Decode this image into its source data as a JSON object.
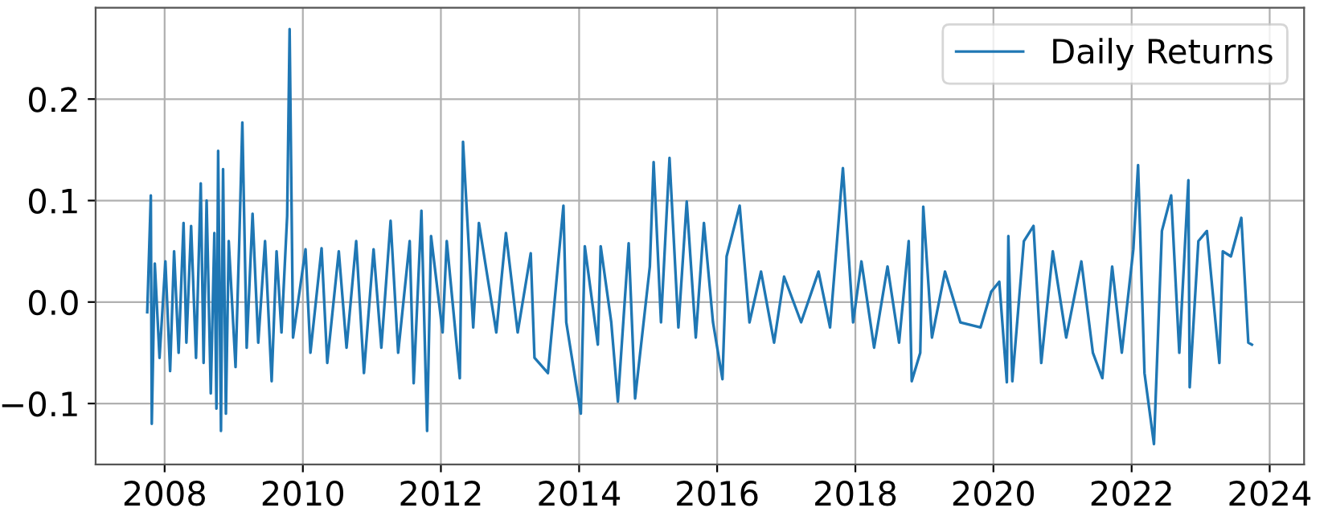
{
  "chart_data": {
    "type": "line",
    "xlim": [
      "2007-01-01",
      "2024-07-01"
    ],
    "xticks": [
      {
        "value": "2008-01-01",
        "label": "2008"
      },
      {
        "value": "2010-01-01",
        "label": "2010"
      },
      {
        "value": "2012-01-01",
        "label": "2012"
      },
      {
        "value": "2014-01-01",
        "label": "2014"
      },
      {
        "value": "2016-01-01",
        "label": "2016"
      },
      {
        "value": "2018-01-01",
        "label": "2018"
      },
      {
        "value": "2020-01-01",
        "label": "2020"
      },
      {
        "value": "2022-01-01",
        "label": "2022"
      },
      {
        "value": "2024-01-01",
        "label": "2024"
      }
    ],
    "ylim": [
      -0.16,
      0.29
    ],
    "yticks": [
      {
        "value": -0.1,
        "label": "−0.1"
      },
      {
        "value": 0.0,
        "label": "0.0"
      },
      {
        "value": 0.1,
        "label": "0.1"
      },
      {
        "value": 0.2,
        "label": "0.2"
      }
    ],
    "grid": true,
    "legend": "top right",
    "series": [
      {
        "name": "Daily Returns",
        "color": "#1f77b4",
        "x": [
          "2007-10-01",
          "2007-10-20",
          "2007-10-25",
          "2007-11-10",
          "2007-12-05",
          "2008-01-05",
          "2008-01-30",
          "2008-02-20",
          "2008-03-15",
          "2008-04-10",
          "2008-04-25",
          "2008-05-20",
          "2008-06-15",
          "2008-07-10",
          "2008-07-25",
          "2008-08-10",
          "2008-09-01",
          "2008-09-20",
          "2008-10-01",
          "2008-10-10",
          "2008-10-25",
          "2008-11-05",
          "2008-11-20",
          "2008-12-05",
          "2009-01-10",
          "2009-01-30",
          "2009-02-15",
          "2009-03-10",
          "2009-04-10",
          "2009-05-10",
          "2009-06-15",
          "2009-07-20",
          "2009-08-15",
          "2009-09-10",
          "2009-10-10",
          "2009-10-23",
          "2009-11-10",
          "2010-01-15",
          "2010-02-10",
          "2010-04-10",
          "2010-05-10",
          "2010-07-10",
          "2010-08-20",
          "2010-10-10",
          "2010-11-20",
          "2011-01-10",
          "2011-02-20",
          "2011-04-10",
          "2011-05-20",
          "2011-07-20",
          "2011-08-10",
          "2011-09-20",
          "2011-10-20",
          "2011-11-10",
          "2012-01-10",
          "2012-02-01",
          "2012-04-10",
          "2012-04-27",
          "2012-06-20",
          "2012-07-20",
          "2012-10-20",
          "2012-12-10",
          "2013-02-10",
          "2013-04-20",
          "2013-05-10",
          "2013-07-20",
          "2013-10-10",
          "2013-10-25",
          "2014-01-10",
          "2014-01-31",
          "2014-04-10",
          "2014-04-25",
          "2014-06-20",
          "2014-07-25",
          "2014-09-20",
          "2014-10-24",
          "2015-01-10",
          "2015-01-30",
          "2015-03-10",
          "2015-04-24",
          "2015-06-10",
          "2015-07-24",
          "2015-09-10",
          "2015-10-23",
          "2015-12-10",
          "2016-01-29",
          "2016-02-20",
          "2016-04-29",
          "2016-06-20",
          "2016-08-20",
          "2016-10-28",
          "2016-12-20",
          "2017-03-20",
          "2017-06-20",
          "2017-08-20",
          "2017-10-27",
          "2017-12-20",
          "2018-02-02",
          "2018-04-10",
          "2018-06-20",
          "2018-08-20",
          "2018-10-10",
          "2018-10-26",
          "2018-12-10",
          "2018-12-26",
          "2019-02-10",
          "2019-04-20",
          "2019-07-10",
          "2019-10-25",
          "2019-12-20",
          "2020-02-01",
          "2020-03-12",
          "2020-03-20",
          "2020-04-10",
          "2020-06-10",
          "2020-07-31",
          "2020-09-10",
          "2020-11-10",
          "2021-01-20",
          "2021-04-10",
          "2021-06-10",
          "2021-07-30",
          "2021-09-20",
          "2021-11-10",
          "2022-01-10",
          "2022-02-04",
          "2022-03-10",
          "2022-04-29",
          "2022-06-10",
          "2022-07-29",
          "2022-09-10",
          "2022-10-28",
          "2022-11-04",
          "2022-12-20",
          "2023-02-03",
          "2023-04-10",
          "2023-04-28",
          "2023-06-10",
          "2023-08-04",
          "2023-09-10",
          "2023-09-29"
        ],
        "values": [
          -0.01,
          0.105,
          -0.12,
          0.038,
          -0.055,
          0.04,
          -0.068,
          0.05,
          -0.05,
          0.078,
          -0.04,
          0.075,
          -0.055,
          0.117,
          -0.06,
          0.1,
          -0.09,
          0.068,
          -0.105,
          0.149,
          -0.127,
          0.131,
          -0.11,
          0.06,
          -0.064,
          0.062,
          0.177,
          -0.045,
          0.087,
          -0.04,
          0.06,
          -0.078,
          0.05,
          -0.03,
          0.085,
          0.269,
          -0.035,
          0.052,
          -0.05,
          0.053,
          -0.06,
          0.05,
          -0.045,
          0.06,
          -0.07,
          0.052,
          -0.045,
          0.08,
          -0.05,
          0.06,
          -0.08,
          0.09,
          -0.127,
          0.065,
          -0.03,
          0.06,
          -0.075,
          0.158,
          -0.025,
          0.078,
          -0.03,
          0.068,
          -0.03,
          0.048,
          -0.055,
          -0.07,
          0.095,
          -0.02,
          -0.11,
          0.055,
          -0.042,
          0.055,
          -0.02,
          -0.098,
          0.058,
          -0.095,
          0.035,
          0.138,
          -0.02,
          0.142,
          -0.025,
          0.099,
          -0.035,
          0.078,
          -0.02,
          -0.076,
          0.045,
          0.095,
          -0.02,
          0.03,
          -0.04,
          0.025,
          -0.02,
          0.03,
          -0.025,
          0.132,
          -0.02,
          0.04,
          -0.045,
          0.035,
          -0.04,
          0.06,
          -0.078,
          -0.05,
          0.094,
          -0.035,
          0.03,
          -0.02,
          -0.025,
          0.01,
          0.02,
          -0.079,
          0.065,
          -0.078,
          0.06,
          0.075,
          -0.06,
          0.05,
          -0.035,
          0.04,
          -0.05,
          -0.075,
          0.035,
          -0.05,
          0.052,
          0.135,
          -0.07,
          -0.14,
          0.07,
          0.105,
          -0.05,
          0.12,
          -0.084,
          0.06,
          0.07,
          -0.06,
          0.05,
          0.045,
          0.083,
          -0.04,
          -0.042
        ]
      }
    ]
  }
}
